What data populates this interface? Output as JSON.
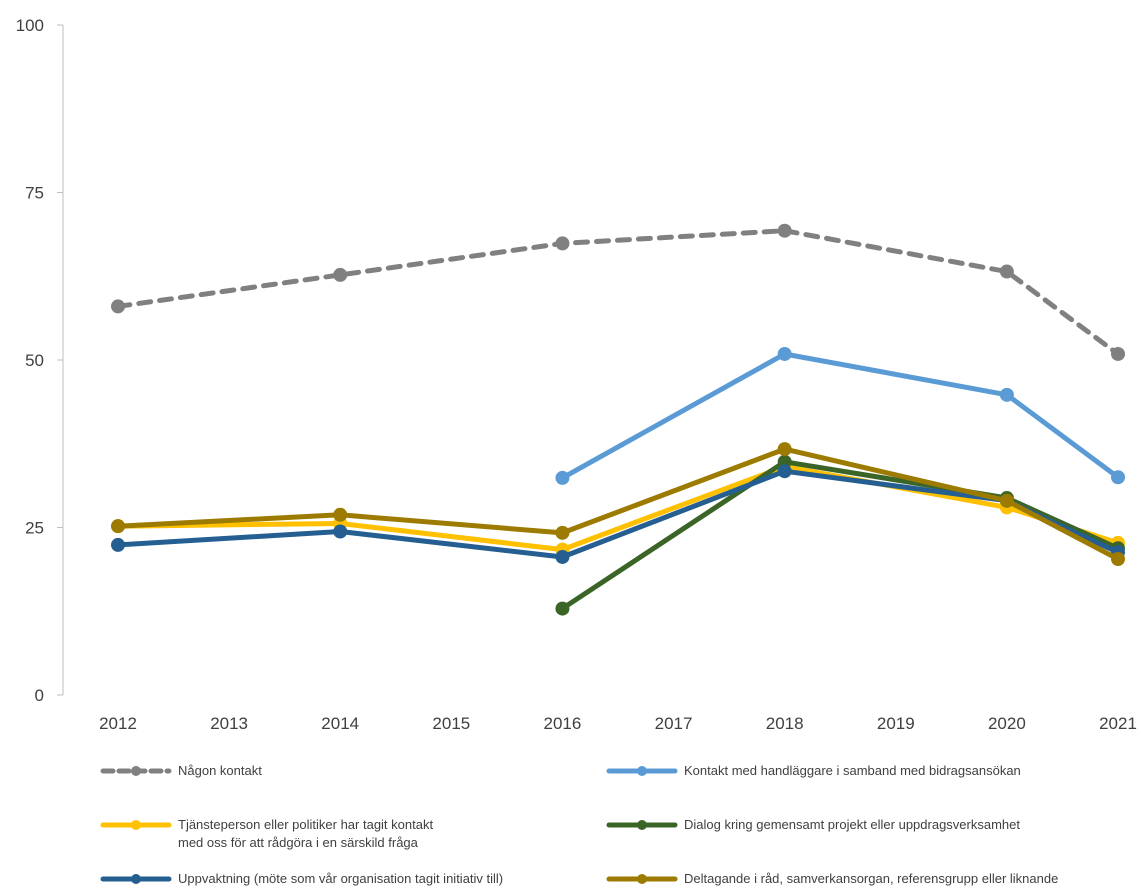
{
  "chart_data": {
    "type": "line",
    "x": [
      2012,
      2013,
      2014,
      2015,
      2016,
      2017,
      2018,
      2019,
      2020,
      2021
    ],
    "xlim": [
      2012,
      2021
    ],
    "ylim": [
      0,
      100
    ],
    "y_ticks": [
      0,
      25,
      50,
      75,
      100
    ],
    "grid": false,
    "legend_position": "bottom",
    "series": [
      {
        "name": "Någon kontakt",
        "color": "#808080",
        "dashed": true,
        "points": [
          [
            2012,
            58
          ],
          [
            2014,
            62.7
          ],
          [
            2016,
            67.4
          ],
          [
            2018,
            69.3
          ],
          [
            2020,
            63.2
          ],
          [
            2021,
            50.9
          ]
        ]
      },
      {
        "name": "Kontakt med handläggare i samband med bidragsansökan",
        "color": "#5b9bd5",
        "dashed": false,
        "points": [
          [
            2016,
            32.4
          ],
          [
            2018,
            50.9
          ],
          [
            2020,
            44.8
          ],
          [
            2021,
            32.5
          ]
        ]
      },
      {
        "name": "Tjänsteperson eller politiker har tagit kontakt\nmed oss för att rådgöra i en särskild fråga",
        "color": "#ffc000",
        "dashed": false,
        "points": [
          [
            2012,
            25.2
          ],
          [
            2014,
            25.6
          ],
          [
            2016,
            21.7
          ],
          [
            2018,
            34.1
          ],
          [
            2020,
            28.0
          ],
          [
            2021,
            22.7
          ]
        ]
      },
      {
        "name": "Dialog kring gemensamt projekt eller uppdragsverksamhet",
        "color": "#3b6427",
        "dashed": false,
        "points": [
          [
            2016,
            12.9
          ],
          [
            2018,
            34.8
          ],
          [
            2020,
            29.4
          ],
          [
            2021,
            21.9
          ]
        ]
      },
      {
        "name": "Uppvaktning (möte som vår organisation tagit initiativ till)",
        "color": "#255e91",
        "dashed": false,
        "points": [
          [
            2012,
            22.4
          ],
          [
            2014,
            24.4
          ],
          [
            2016,
            20.6
          ],
          [
            2018,
            33.4
          ],
          [
            2020,
            29.0
          ],
          [
            2021,
            21.3
          ]
        ]
      },
      {
        "name": "Deltagande i råd, samverkansorgan, referensgrupp eller liknande",
        "color": "#9c7b00",
        "dashed": false,
        "points": [
          [
            2012,
            25.2
          ],
          [
            2014,
            26.9
          ],
          [
            2016,
            24.2
          ],
          [
            2018,
            36.7
          ],
          [
            2020,
            29.0
          ],
          [
            2021,
            20.3
          ]
        ]
      }
    ]
  }
}
